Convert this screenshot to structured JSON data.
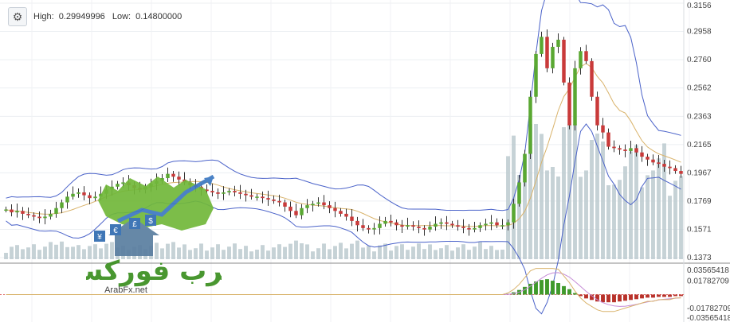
{
  "toolbar": {
    "settings_icon": "gear-icon",
    "high_label": "High:",
    "high_value": "0.29949996",
    "low_label": "Low:",
    "low_value": "0.14800000"
  },
  "watermark": {
    "arabic_text": "عرب فوركس",
    "url_text": "ArabFx.net",
    "symbols": [
      "¥",
      "€",
      "£",
      "$"
    ]
  },
  "colors": {
    "up": "#5aa832",
    "down": "#c93a3a",
    "volume": "#b8c7cc",
    "bollinger": "#4a62c9",
    "ma": "#d9b36b",
    "macd_pos": "#3f9a2b",
    "macd_neg": "#b8322a",
    "signal": "#c58bd6",
    "macd_line": "#d9b36b"
  },
  "chart_data": {
    "type": "candlestick",
    "price_axis_ticks": [
      "0.3156",
      "0.2958",
      "0.2760",
      "0.2562",
      "0.2363",
      "0.2165",
      "0.1967",
      "0.1769",
      "0.1571",
      "0.1373"
    ],
    "indicator_axis_ticks": [
      "0.03565418",
      "0.01782709",
      "-0.01782709",
      "-0.03565418"
    ],
    "price_range": [
      0.1373,
      0.3156
    ],
    "indicator_range": [
      -0.03565418,
      0.03565418
    ],
    "high": 0.29949996,
    "low": 0.148,
    "closes": [
      0.171,
      0.169,
      0.17,
      0.168,
      0.167,
      0.166,
      0.165,
      0.166,
      0.168,
      0.172,
      0.176,
      0.18,
      0.182,
      0.183,
      0.181,
      0.179,
      0.18,
      0.182,
      0.185,
      0.187,
      0.189,
      0.19,
      0.188,
      0.186,
      0.185,
      0.187,
      0.189,
      0.191,
      0.193,
      0.196,
      0.194,
      0.192,
      0.19,
      0.188,
      0.187,
      0.185,
      0.184,
      0.183,
      0.182,
      0.183,
      0.184,
      0.183,
      0.182,
      0.181,
      0.18,
      0.18,
      0.179,
      0.178,
      0.177,
      0.176,
      0.173,
      0.17,
      0.167,
      0.172,
      0.174,
      0.175,
      0.176,
      0.174,
      0.172,
      0.17,
      0.168,
      0.166,
      0.163,
      0.16,
      0.158,
      0.157,
      0.158,
      0.161,
      0.163,
      0.162,
      0.16,
      0.159,
      0.16,
      0.159,
      0.158,
      0.157,
      0.159,
      0.161,
      0.162,
      0.161,
      0.16,
      0.159,
      0.158,
      0.157,
      0.158,
      0.16,
      0.161,
      0.162,
      0.16,
      0.16,
      0.162,
      0.175,
      0.19,
      0.21,
      0.25,
      0.28,
      0.292,
      0.27,
      0.285,
      0.29,
      0.26,
      0.23,
      0.27,
      0.282,
      0.275,
      0.25,
      0.23,
      0.225,
      0.215,
      0.214,
      0.213,
      0.212,
      0.214,
      0.211,
      0.208,
      0.206,
      0.204,
      0.203,
      0.201,
      0.2,
      0.198,
      0.196
    ],
    "macd_hist": [
      0,
      0,
      0,
      0,
      0,
      0,
      0,
      0,
      0,
      0,
      0,
      0,
      0,
      0,
      0,
      0,
      0,
      0,
      0,
      0,
      0,
      0,
      0,
      0,
      0,
      0,
      0,
      0,
      0,
      0,
      0,
      0,
      0,
      0,
      0,
      0,
      0,
      0,
      0,
      0,
      0,
      0,
      0,
      0,
      0,
      0,
      0,
      0,
      0,
      0,
      0,
      0,
      0,
      0,
      0,
      0,
      0,
      0,
      0,
      0,
      0,
      0,
      0,
      0,
      0,
      0,
      0,
      0,
      0,
      0,
      0,
      0,
      0,
      0,
      0,
      0,
      0,
      0,
      0,
      0,
      0,
      0,
      0,
      0,
      0,
      0,
      0,
      0,
      0,
      0,
      0.001,
      0.003,
      0.006,
      0.01,
      0.014,
      0.017,
      0.019,
      0.02,
      0.018,
      0.015,
      0.011,
      0.007,
      0.002,
      -0.002,
      -0.005,
      -0.007,
      -0.009,
      -0.01,
      -0.01,
      -0.01,
      -0.009,
      -0.008,
      -0.007,
      -0.006,
      -0.005,
      -0.004,
      -0.004,
      -0.003,
      -0.003,
      -0.003,
      -0.002,
      -0.002
    ]
  }
}
